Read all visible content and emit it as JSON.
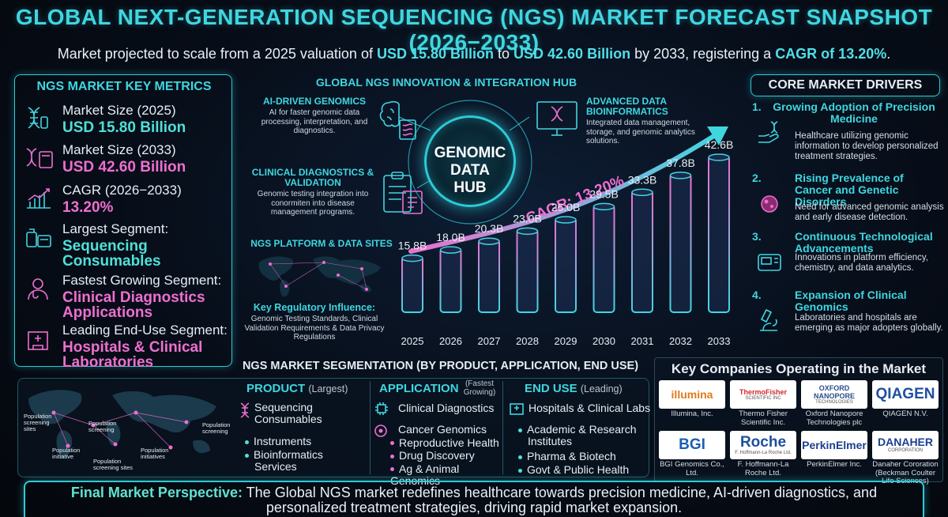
{
  "title": "GLOBAL NEXT-GENERATION SEQUENCING (NGS) MARKET FORECAST SNAPSHOT (2026−2033)",
  "subtitle": {
    "pre": "Market projected to scale from a 2025 valuation of ",
    "v1": "USD 15.80 Billion",
    "mid": " to ",
    "v2": "USD 42.60 Billion",
    "mid2": " by 2033, registering a ",
    "v3": "CAGR of 13.20%",
    "post": "."
  },
  "metrics": {
    "heading": "NGS MARKET KEY METRICS",
    "items": [
      {
        "label": "Market Size (2025)",
        "value": "USD 15.80 Billion",
        "icon": "dna-icon",
        "color": "#4fe0d8"
      },
      {
        "label": "Market Size (2033)",
        "value": "USD 42.60 Billion",
        "icon": "dna-sequencer-icon",
        "color": "#ee6fd0"
      },
      {
        "label": "CAGR (2026−2033)",
        "value": "13.20%",
        "icon": "growth-chart-icon",
        "color": "#ee6fd0"
      },
      {
        "label": "Largest Segment:",
        "value": "Sequencing Consumables",
        "icon": "reagent-kits-icon",
        "color": "#4fe0d8"
      },
      {
        "label": "Fastest Growing Segment:",
        "value": "Clinical Diagnostics Applications",
        "icon": "doctor-icon",
        "color": "#ee6fd0"
      },
      {
        "label": "Leading End-Use Segment:",
        "value": "Hospitals & Clinical Laboratories",
        "icon": "hospital-icon",
        "color": "#ee6fd0"
      }
    ]
  },
  "hub": {
    "heading": "GLOBAL NGS INNOVATION & INTEGRATION HUB",
    "center": "GENOMIC DATA HUB",
    "ai_title": "AI-DRIVEN GENOMICS",
    "ai_desc": "AI for faster genomic data processing, interpretation, and diagnostics.",
    "bio_title": "ADVANCED DATA BIOINFORMATICS",
    "bio_desc": "Integrated data management, storage, and genomic analytics solutions.",
    "clin_title": "CLINICAL DIAGNOSTICS & VALIDATION",
    "clin_desc": "Genomic testing integration into conormiten into disease management programs.",
    "sites_title": "NGS PLATFORM & DATA SITES",
    "reg_title": "Key Regulatory Influence:",
    "reg_desc": "Genomic Testing Standards, Clinical Validation Requirements & Data Privacy Regulations"
  },
  "chart_data": {
    "type": "bar",
    "categories": [
      "2025",
      "2026",
      "2027",
      "2028",
      "2029",
      "2030",
      "2031",
      "2032",
      "2033"
    ],
    "values": [
      15.8,
      18.0,
      20.3,
      23.0,
      26.0,
      29.5,
      33.3,
      37.8,
      42.6
    ],
    "labels": [
      "15.8B",
      "18.0B",
      "20.3B",
      "23.0B",
      "26.0B",
      "29.5B",
      "33.3B",
      "37.8B",
      "42.6B"
    ],
    "annotation": "CAGR: 13.20%",
    "ylim": [
      0,
      45
    ],
    "bar_color_start": "#3fd6e0",
    "bar_color_end": "#ee6fd0"
  },
  "drivers": {
    "heading": "CORE MARKET DRIVERS",
    "items": [
      {
        "num": "1.",
        "title": "Growing Adoption of Precision Medicine",
        "desc": "Healthcare utilizing genomic information to develop personalized treatment strategies.",
        "icon": "precision-medicine-icon"
      },
      {
        "num": "2.",
        "title": "Rising Prevalence of Cancer and Genetic Disorders",
        "desc": "Need for advanced genomic analysis and early disease detection.",
        "icon": "cancer-cell-icon"
      },
      {
        "num": "3.",
        "title": "Continuous Technological Advancements",
        "desc": "Innovations in platform efficiency, chemistry, and data analytics.",
        "icon": "sequencer-device-icon"
      },
      {
        "num": "4.",
        "title": "Expansion of Clinical Genomics",
        "desc": "Laboratories and hospitals are emerging as major adopters globally.",
        "icon": "microscope-icon"
      }
    ]
  },
  "segmentation": {
    "heading": "NGS MARKET SEGMENTATION (BY PRODUCT, APPLICATION, END USE)",
    "map_labels": [
      "Population screening sites",
      "Population screening",
      "Population screening",
      "Population initiative",
      "Population initiatives",
      "Population screening sites"
    ],
    "product": {
      "title": "PRODUCT",
      "note": "(Largest)",
      "top": "Sequencing Consumables",
      "items": [
        "Instruments",
        "Bioinformatics Services"
      ]
    },
    "application": {
      "title": "APPLICATION",
      "note": "(Fastest Growing)",
      "top": "Clinical Diagnostics",
      "items": [
        "Cancer Genomics",
        "Reproductive Health",
        "Drug Discovery",
        "Ag & Animal Genomics"
      ]
    },
    "enduse": {
      "title": "END USE",
      "note": "(Leading)",
      "top": "Hospitals & Clinical Labs",
      "items": [
        "Academic & Research Institutes",
        "Pharma & Biotech",
        "Govt & Public Health"
      ]
    }
  },
  "companies": {
    "heading": "Key Companies Operating in the Market",
    "items": [
      {
        "logo": "illumina",
        "sub": "",
        "name": "Illumina, Inc.",
        "color": "#e07b1a"
      },
      {
        "logo": "ThermoFisher",
        "sub": "SCIENTIFIC INC",
        "name": "Thermo Fisher Scientific Inc.",
        "color": "#d0282e"
      },
      {
        "logo": "OXFORD NANOPORE",
        "sub": "TECHNOLOGIES",
        "name": "Oxford Nanopore Technologies plc",
        "color": "#2b4d8c"
      },
      {
        "logo": "QIAGEN",
        "sub": "",
        "name": "QIAGEN N.V.",
        "color": "#1f4fa0"
      },
      {
        "logo": "BGI",
        "sub": "",
        "name": "BGI Genomics Co., Ltd.",
        "color": "#1a5fb4"
      },
      {
        "logo": "Roche",
        "sub": "F. Hoffmann-La Roche Ltd.",
        "name": "F. Hoffmann-La Roche Ltd.",
        "color": "#1c4f9c"
      },
      {
        "logo": "PerkinElmer",
        "sub": "",
        "name": "PerkinElmer Inc.",
        "color": "#1b3f8f"
      },
      {
        "logo": "DANAHER",
        "sub": "CORPORATION",
        "name": "Danaher Cororation (Beckman Coulter Life Sciences)",
        "color": "#1b3f8f"
      }
    ]
  },
  "final": {
    "lead": "Final Market Perspective:",
    "text": " The Global NGS market redefines healthcare towards precision medicine, AI-driven diagnostics, and personalized treatment strategies, driving rapid market expansion."
  }
}
